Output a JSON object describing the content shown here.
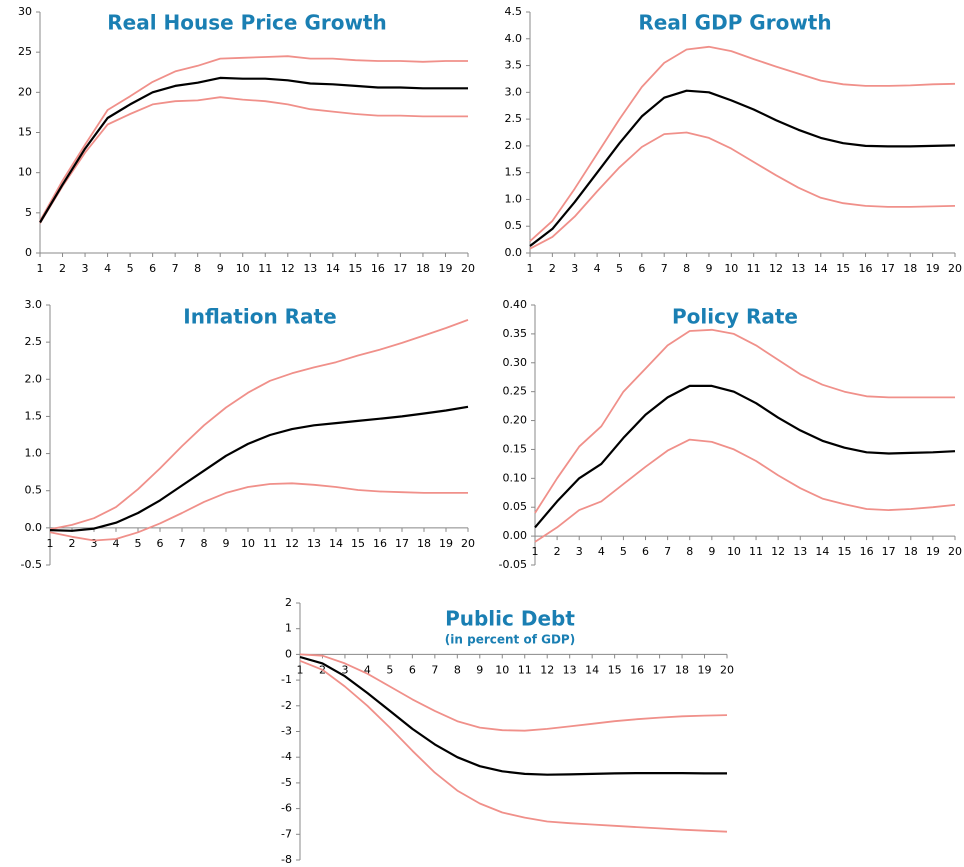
{
  "chart_data": [
    {
      "type": "line",
      "title": "Real House Price Growth",
      "x": [
        1,
        2,
        3,
        4,
        5,
        6,
        7,
        8,
        9,
        10,
        11,
        12,
        13,
        14,
        15,
        16,
        17,
        18,
        19,
        20
      ],
      "xlim": [
        1,
        20
      ],
      "xticks": [
        1,
        2,
        3,
        4,
        5,
        6,
        7,
        8,
        9,
        10,
        11,
        12,
        13,
        14,
        15,
        16,
        17,
        18,
        19,
        20
      ],
      "ylim": [
        0,
        30
      ],
      "yticks": [
        0,
        5,
        10,
        15,
        20,
        25,
        30
      ],
      "series": [
        {
          "color": "#f0908a",
          "values": [
            4,
            9,
            13.5,
            17.8,
            19.5,
            21.3,
            22.6,
            23.3,
            24.2,
            24.3,
            24.4,
            24.5,
            24.2,
            24.2,
            24,
            23.9,
            23.9,
            23.8,
            23.9,
            23.9
          ]
        },
        {
          "color": "#f0908a",
          "values": [
            3.7,
            8.3,
            12.5,
            16,
            17.3,
            18.5,
            18.9,
            19,
            19.4,
            19.1,
            18.9,
            18.5,
            17.9,
            17.6,
            17.3,
            17.1,
            17.1,
            17,
            17,
            17
          ]
        },
        {
          "color": "#000000",
          "values": [
            3.8,
            8.5,
            13,
            16.8,
            18.5,
            20,
            20.8,
            21.2,
            21.8,
            21.7,
            21.7,
            21.5,
            21.1,
            21,
            20.8,
            20.6,
            20.6,
            20.5,
            20.5,
            20.5
          ]
        }
      ]
    },
    {
      "type": "line",
      "title": "Real GDP Growth",
      "x": [
        1,
        2,
        3,
        4,
        5,
        6,
        7,
        8,
        9,
        10,
        11,
        12,
        13,
        14,
        15,
        16,
        17,
        18,
        19,
        20
      ],
      "xlim": [
        1,
        20
      ],
      "xticks": [
        1,
        2,
        3,
        4,
        5,
        6,
        7,
        8,
        9,
        10,
        11,
        12,
        13,
        14,
        15,
        16,
        17,
        18,
        19,
        20
      ],
      "ylim": [
        0,
        4.5
      ],
      "yticks": [
        {
          "value": 0,
          "label": "0.0"
        },
        0.5,
        {
          "value": 1,
          "label": "1.0"
        },
        1.5,
        {
          "value": 2,
          "label": "2.0"
        },
        2.5,
        {
          "value": 3,
          "label": "3.0"
        },
        3.5,
        {
          "value": 4,
          "label": "4.0"
        },
        4.5
      ],
      "series": [
        {
          "color": "#f0908a",
          "values": [
            0.22,
            0.6,
            1.2,
            1.85,
            2.5,
            3.1,
            3.55,
            3.8,
            3.85,
            3.77,
            3.62,
            3.48,
            3.35,
            3.22,
            3.15,
            3.12,
            3.12,
            3.13,
            3.15,
            3.16
          ]
        },
        {
          "color": "#f0908a",
          "values": [
            0.08,
            0.3,
            0.68,
            1.15,
            1.6,
            1.98,
            2.22,
            2.25,
            2.15,
            1.95,
            1.7,
            1.45,
            1.22,
            1.03,
            0.93,
            0.88,
            0.86,
            0.86,
            0.87,
            0.88
          ]
        },
        {
          "color": "#000000",
          "values": [
            0.13,
            0.45,
            0.95,
            1.5,
            2.05,
            2.55,
            2.9,
            3.03,
            3,
            2.85,
            2.68,
            2.48,
            2.3,
            2.15,
            2.05,
            2,
            1.99,
            1.99,
            2,
            2.01
          ]
        }
      ]
    },
    {
      "type": "line",
      "title": "Inflation Rate",
      "x": [
        1,
        2,
        3,
        4,
        5,
        6,
        7,
        8,
        9,
        10,
        11,
        12,
        13,
        14,
        15,
        16,
        17,
        18,
        19,
        20
      ],
      "xlim": [
        1,
        20
      ],
      "xticks": [
        1,
        2,
        3,
        4,
        5,
        6,
        7,
        8,
        9,
        10,
        11,
        12,
        13,
        14,
        15,
        16,
        17,
        18,
        19,
        20
      ],
      "ylim": [
        -0.5,
        3
      ],
      "yticks": [
        -0.5,
        {
          "value": 0,
          "label": "0.0"
        },
        0.5,
        {
          "value": 1,
          "label": "1.0"
        },
        1.5,
        {
          "value": 2,
          "label": "2.0"
        },
        2.5,
        {
          "value": 3,
          "label": "3.0"
        }
      ],
      "series": [
        {
          "color": "#f0908a",
          "values": [
            -0.02,
            0.04,
            0.13,
            0.28,
            0.52,
            0.8,
            1.1,
            1.38,
            1.62,
            1.82,
            1.98,
            2.08,
            2.16,
            2.23,
            2.32,
            2.4,
            2.49,
            2.59,
            2.69,
            2.8
          ]
        },
        {
          "color": "#f0908a",
          "values": [
            -0.06,
            -0.12,
            -0.17,
            -0.15,
            -0.06,
            0.06,
            0.2,
            0.35,
            0.47,
            0.55,
            0.59,
            0.6,
            0.58,
            0.55,
            0.51,
            0.49,
            0.48,
            0.47,
            0.47,
            0.47
          ]
        },
        {
          "color": "#000000",
          "values": [
            -0.03,
            -0.04,
            -0.01,
            0.07,
            0.2,
            0.37,
            0.57,
            0.77,
            0.97,
            1.13,
            1.25,
            1.33,
            1.38,
            1.41,
            1.44,
            1.47,
            1.5,
            1.54,
            1.58,
            1.63
          ]
        }
      ]
    },
    {
      "type": "line",
      "title": "Policy Rate",
      "x": [
        1,
        2,
        3,
        4,
        5,
        6,
        7,
        8,
        9,
        10,
        11,
        12,
        13,
        14,
        15,
        16,
        17,
        18,
        19,
        20
      ],
      "xlim": [
        1,
        20
      ],
      "xticks": [
        1,
        2,
        3,
        4,
        5,
        6,
        7,
        8,
        9,
        10,
        11,
        12,
        13,
        14,
        15,
        16,
        17,
        18,
        19,
        20
      ],
      "ylim": [
        -0.05,
        0.4
      ],
      "yticks": [
        -0.05,
        {
          "value": 0,
          "label": "0.00"
        },
        0.05,
        {
          "value": 0.1,
          "label": "0.10"
        },
        0.15,
        {
          "value": 0.2,
          "label": "0.20"
        },
        0.25,
        {
          "value": 0.3,
          "label": "0.30"
        },
        0.35,
        {
          "value": 0.4,
          "label": "0.40"
        }
      ],
      "series": [
        {
          "color": "#f0908a",
          "values": [
            0.04,
            0.1,
            0.155,
            0.19,
            0.25,
            0.29,
            0.33,
            0.355,
            0.357,
            0.35,
            0.33,
            0.305,
            0.28,
            0.262,
            0.25,
            0.242,
            0.24,
            0.24,
            0.24,
            0.24
          ]
        },
        {
          "color": "#f0908a",
          "values": [
            -0.01,
            0.015,
            0.045,
            0.06,
            0.09,
            0.12,
            0.148,
            0.167,
            0.163,
            0.15,
            0.13,
            0.105,
            0.083,
            0.065,
            0.055,
            0.047,
            0.045,
            0.047,
            0.05,
            0.054
          ]
        },
        {
          "color": "#000000",
          "values": [
            0.015,
            0.06,
            0.1,
            0.125,
            0.17,
            0.21,
            0.24,
            0.26,
            0.26,
            0.25,
            0.23,
            0.205,
            0.183,
            0.165,
            0.153,
            0.145,
            0.143,
            0.144,
            0.145,
            0.147
          ]
        }
      ]
    },
    {
      "type": "line",
      "title": "Public Debt",
      "subtitle": "(in percent of GDP)",
      "x": [
        1,
        2,
        3,
        4,
        5,
        6,
        7,
        8,
        9,
        10,
        11,
        12,
        13,
        14,
        15,
        16,
        17,
        18,
        19,
        20
      ],
      "xlim": [
        1,
        20
      ],
      "xticks": [
        1,
        2,
        3,
        4,
        5,
        6,
        7,
        8,
        9,
        10,
        11,
        12,
        13,
        14,
        15,
        16,
        17,
        18,
        19,
        20
      ],
      "ylim": [
        -8,
        2
      ],
      "yticks": [
        -8,
        -7,
        -6,
        -5,
        -4,
        -3,
        -2,
        -1,
        0,
        1,
        2
      ],
      "series": [
        {
          "color": "#f0908a",
          "values": [
            0,
            -0.05,
            -0.35,
            -0.75,
            -1.25,
            -1.75,
            -2.2,
            -2.6,
            -2.85,
            -2.95,
            -2.97,
            -2.9,
            -2.8,
            -2.7,
            -2.6,
            -2.52,
            -2.46,
            -2.41,
            -2.38,
            -2.36
          ]
        },
        {
          "color": "#f0908a",
          "values": [
            -0.25,
            -0.6,
            -1.25,
            -2,
            -2.85,
            -3.75,
            -4.6,
            -5.3,
            -5.8,
            -6.15,
            -6.35,
            -6.5,
            -6.57,
            -6.62,
            -6.67,
            -6.72,
            -6.77,
            -6.82,
            -6.86,
            -6.9
          ]
        },
        {
          "color": "#000000",
          "values": [
            -0.1,
            -0.35,
            -0.85,
            -1.5,
            -2.2,
            -2.9,
            -3.5,
            -4,
            -4.35,
            -4.55,
            -4.65,
            -4.68,
            -4.67,
            -4.65,
            -4.63,
            -4.62,
            -4.62,
            -4.62,
            -4.63,
            -4.63
          ]
        }
      ]
    }
  ]
}
